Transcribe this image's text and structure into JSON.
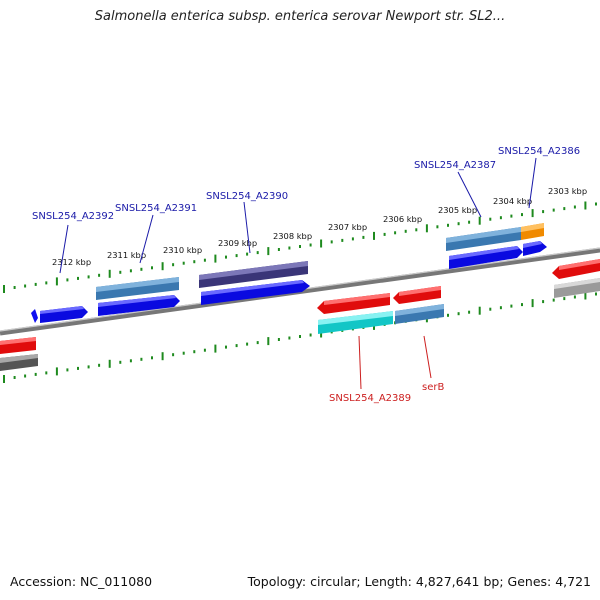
{
  "title": "Salmonella enterica subsp. enterica serovar Newport str. SL2...",
  "footer": {
    "accession": "Accession: NC_011080",
    "summary": "Topology: circular; Length: 4,827,641 bp; Genes: 4,721"
  },
  "kbp_labels": [
    "2312 kbp",
    "2311 kbp",
    "2310 kbp",
    "2309 kbp",
    "2308 kbp",
    "2307 kbp",
    "2306 kbp",
    "2305 kbp",
    "2304 kbp",
    "2303 kbp"
  ],
  "gene_labels": {
    "a2392": "SNSL254_A2392",
    "a2391": "SNSL254_A2391",
    "a2390": "SNSL254_A2390",
    "a2387": "SNSL254_A2387",
    "a2386": "SNSL254_A2386",
    "a2389": "SNSL254_A2389",
    "serb": "serB"
  },
  "colors": {
    "blue": "#0a0ae0",
    "steel": "#3a78b0",
    "purple": "#3a3578",
    "red": "#e00c0c",
    "cyan": "#12c6c6",
    "orange": "#f08a00",
    "gray": "#8a8a8a",
    "darkgray": "#555555",
    "tick": "#1e8a1e",
    "label_blue": "#1a1aa8",
    "label_red": "#cc1f1f"
  }
}
